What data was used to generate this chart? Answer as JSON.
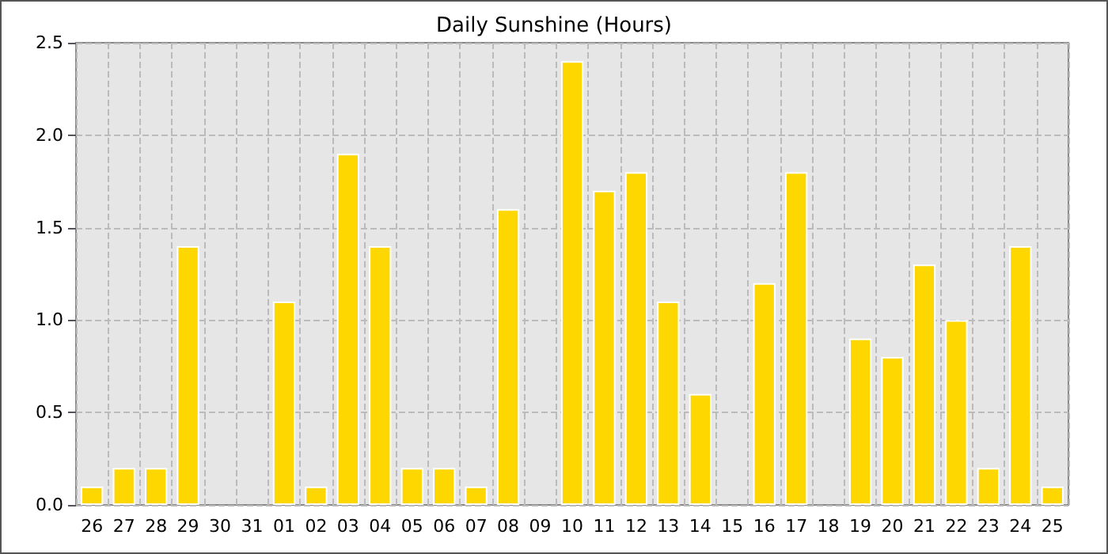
{
  "chart_data": {
    "type": "bar",
    "title": "Daily Sunshine (Hours)",
    "categories": [
      "26",
      "27",
      "28",
      "29",
      "30",
      "31",
      "01",
      "02",
      "03",
      "04",
      "05",
      "06",
      "07",
      "08",
      "09",
      "10",
      "11",
      "12",
      "13",
      "14",
      "15",
      "16",
      "17",
      "18",
      "19",
      "20",
      "21",
      "22",
      "23",
      "24",
      "25"
    ],
    "values": [
      0.1,
      0.2,
      0.2,
      1.4,
      0,
      0,
      1.1,
      0.1,
      1.9,
      1.4,
      0.2,
      0.2,
      0.1,
      1.6,
      0,
      2.4,
      1.7,
      1.8,
      1.1,
      0.6,
      0,
      1.2,
      1.8,
      0,
      0.9,
      0.8,
      1.3,
      1.0,
      0.2,
      1.4,
      0.1
    ],
    "color": "#ffd700",
    "ylim": [
      0,
      2.5
    ],
    "yticks": [
      {
        "value": 0,
        "label": "0.0"
      },
      {
        "value": 0.5,
        "label": "0.5"
      },
      {
        "value": 1,
        "label": "1.0"
      },
      {
        "value": 1.5,
        "label": "1.5"
      },
      {
        "value": 2,
        "label": "2.0"
      },
      {
        "value": 2.5,
        "label": "2.5"
      }
    ],
    "grid": true
  }
}
